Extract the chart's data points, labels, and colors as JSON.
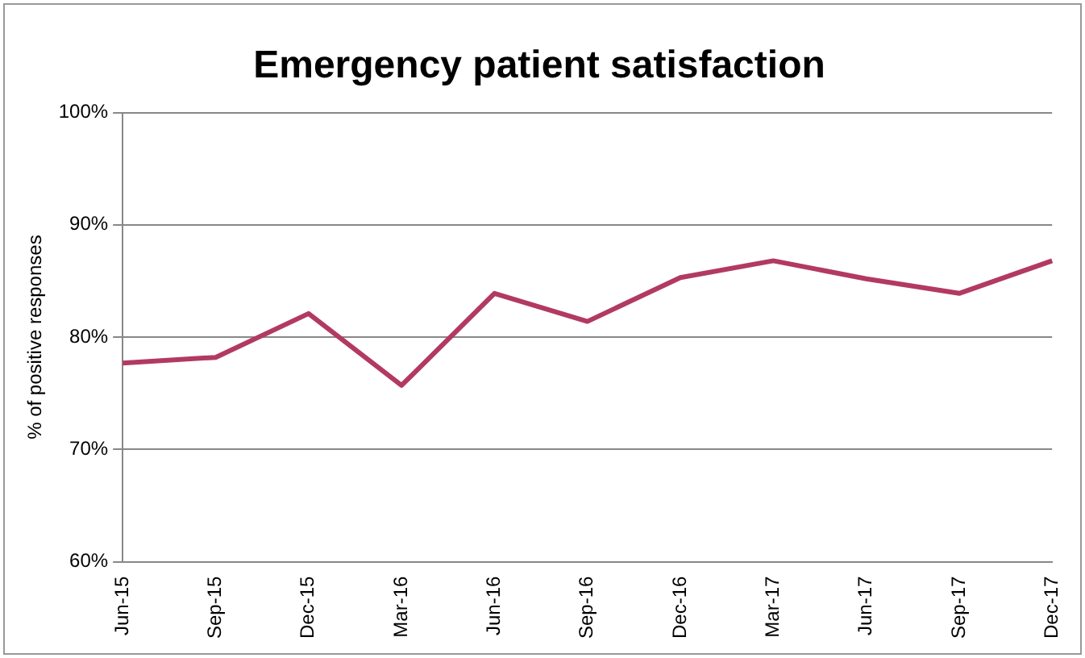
{
  "chart_data": {
    "type": "line",
    "title": "Emergency patient satisfaction",
    "ylabel": "% of positive responses",
    "categories": [
      "Jun-15",
      "Sep-15",
      "Dec-15",
      "Mar-16",
      "Jun-16",
      "Sep-16",
      "Dec-16",
      "Mar-17",
      "Jun-17",
      "Sep-17",
      "Dec-17"
    ],
    "series": [
      {
        "color": "#b23a62",
        "values": [
          77.7,
          78.2,
          82.1,
          75.7,
          83.9,
          81.4,
          85.3,
          86.8,
          85.2,
          83.9,
          86.8
        ]
      }
    ],
    "ylim": [
      60,
      100
    ],
    "yticks": [
      {
        "value": 60,
        "label": "60%"
      },
      {
        "value": 70,
        "label": "70%"
      },
      {
        "value": 80,
        "label": "80%"
      },
      {
        "value": 90,
        "label": "90%"
      },
      {
        "value": 100,
        "label": "100%"
      }
    ],
    "grid": "y",
    "legend": false,
    "marker": "none",
    "line_style": "solid"
  }
}
